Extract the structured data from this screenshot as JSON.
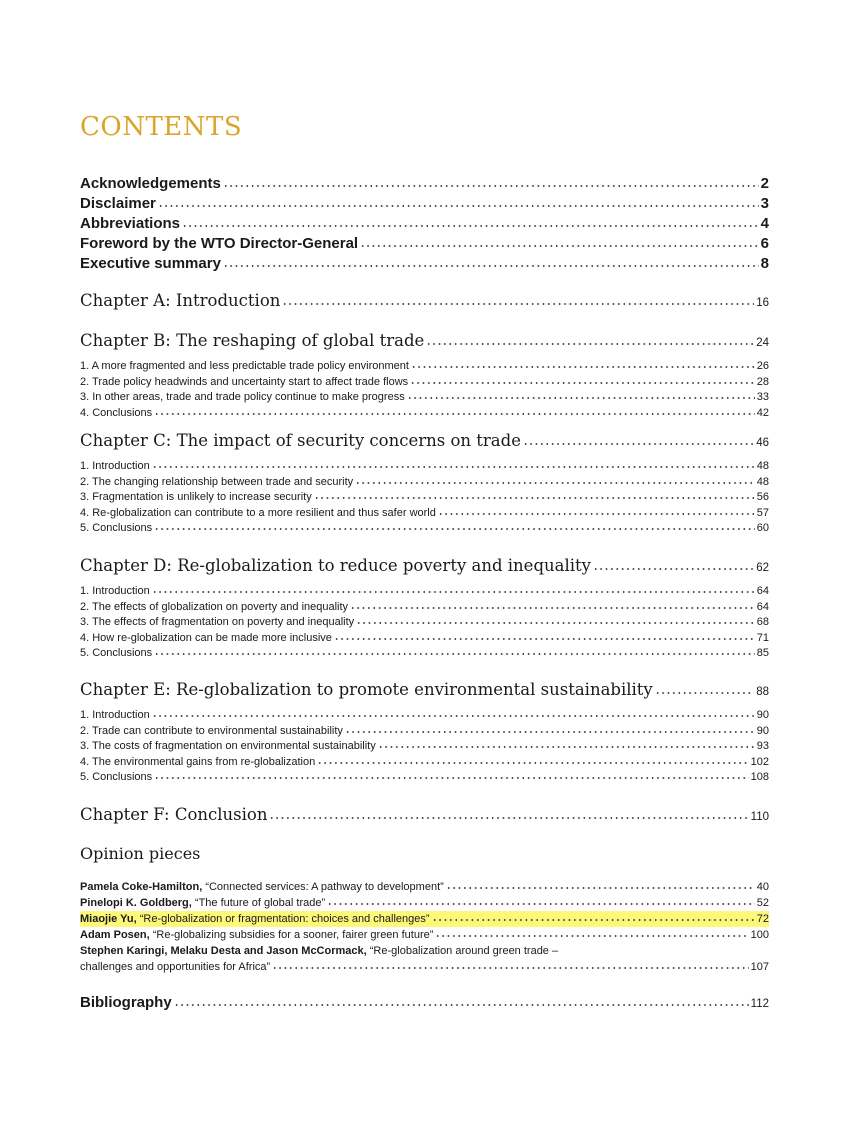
{
  "title": "CONTENTS",
  "colors": {
    "title": "#d9a52a",
    "highlight": "#fdf77a"
  },
  "front": [
    {
      "label": "Acknowledgements",
      "page": "2"
    },
    {
      "label": "Disclaimer",
      "page": "3"
    },
    {
      "label": "Abbreviations",
      "page": "4"
    },
    {
      "label": "Foreword by the WTO Director-General",
      "page": "6"
    },
    {
      "label": "Executive summary",
      "page": "8"
    }
  ],
  "chapters": [
    {
      "label": "Chapter A: Introduction",
      "page": "16",
      "sections": []
    },
    {
      "label": "Chapter B: The reshaping of global trade",
      "page": "24",
      "sections": [
        {
          "label": "1. A more fragmented and less predictable trade policy environment",
          "page": "26"
        },
        {
          "label": "2. Trade policy headwinds and uncertainty start to affect trade flows",
          "page": "28"
        },
        {
          "label": "3. In other areas, trade and trade policy continue to make progress",
          "page": "33"
        },
        {
          "label": "4. Conclusions",
          "page": "42"
        }
      ]
    },
    {
      "label": "Chapter C: The impact of security concerns on trade",
      "page": "46",
      "sections": [
        {
          "label": "1. Introduction",
          "page": "48"
        },
        {
          "label": "2. The changing relationship between trade and security",
          "page": "48"
        },
        {
          "label": "3. Fragmentation is unlikely to increase security",
          "page": "56"
        },
        {
          "label": "4. Re-globalization can contribute to a more resilient and thus safer world",
          "page": "57"
        },
        {
          "label": "5. Conclusions",
          "page": "60"
        }
      ]
    },
    {
      "label": "Chapter D: Re-globalization to reduce poverty and inequality",
      "page": "62",
      "sections": [
        {
          "label": "1. Introduction",
          "page": "64"
        },
        {
          "label": "2. The effects of globalization on poverty and inequality",
          "page": "64"
        },
        {
          "label": "3. The effects of fragmentation on poverty and inequality",
          "page": "68"
        },
        {
          "label": "4. How re-globalization can be made more inclusive",
          "page": "71"
        },
        {
          "label": "5. Conclusions",
          "page": "85"
        }
      ]
    },
    {
      "label": "Chapter E: Re-globalization to promote environmental sustainability",
      "page": "88",
      "sections": [
        {
          "label": "1. Introduction",
          "page": "90"
        },
        {
          "label": "2. Trade can contribute to environmental sustainability",
          "page": "90"
        },
        {
          "label": "3. The costs of fragmentation on environmental sustainability",
          "page": "93"
        },
        {
          "label": "4. The environmental gains from re-globalization",
          "page": "102"
        },
        {
          "label": "5. Conclusions",
          "page": "108"
        }
      ]
    },
    {
      "label": "Chapter F: Conclusion",
      "page": "110",
      "sections": []
    }
  ],
  "opinion": {
    "heading": "Opinion pieces",
    "items": [
      {
        "author": "Pamela Coke-Hamilton,",
        "title": " “Connected services: A pathway to development”",
        "page": "40"
      },
      {
        "author": "Pinelopi K. Goldberg,",
        "title": " “The future of global trade”",
        "page": "52"
      },
      {
        "author": "Miaojie Yu,",
        "title": " “Re-globalization or fragmentation: choices and challenges”",
        "page": "72",
        "highlighted": true
      },
      {
        "author": "Adam Posen,",
        "title": " “Re-globalizing subsidies for a sooner, fairer green future”",
        "page": "100"
      },
      {
        "author": "Stephen Karingi, Melaku Desta and Jason McCormack,",
        "title": " “Re-globalization around green trade –",
        "title_cont": "challenges and opportunities for Africa”",
        "page": "107"
      }
    ]
  },
  "bibliography": {
    "label": "Bibliography",
    "page": "112"
  }
}
